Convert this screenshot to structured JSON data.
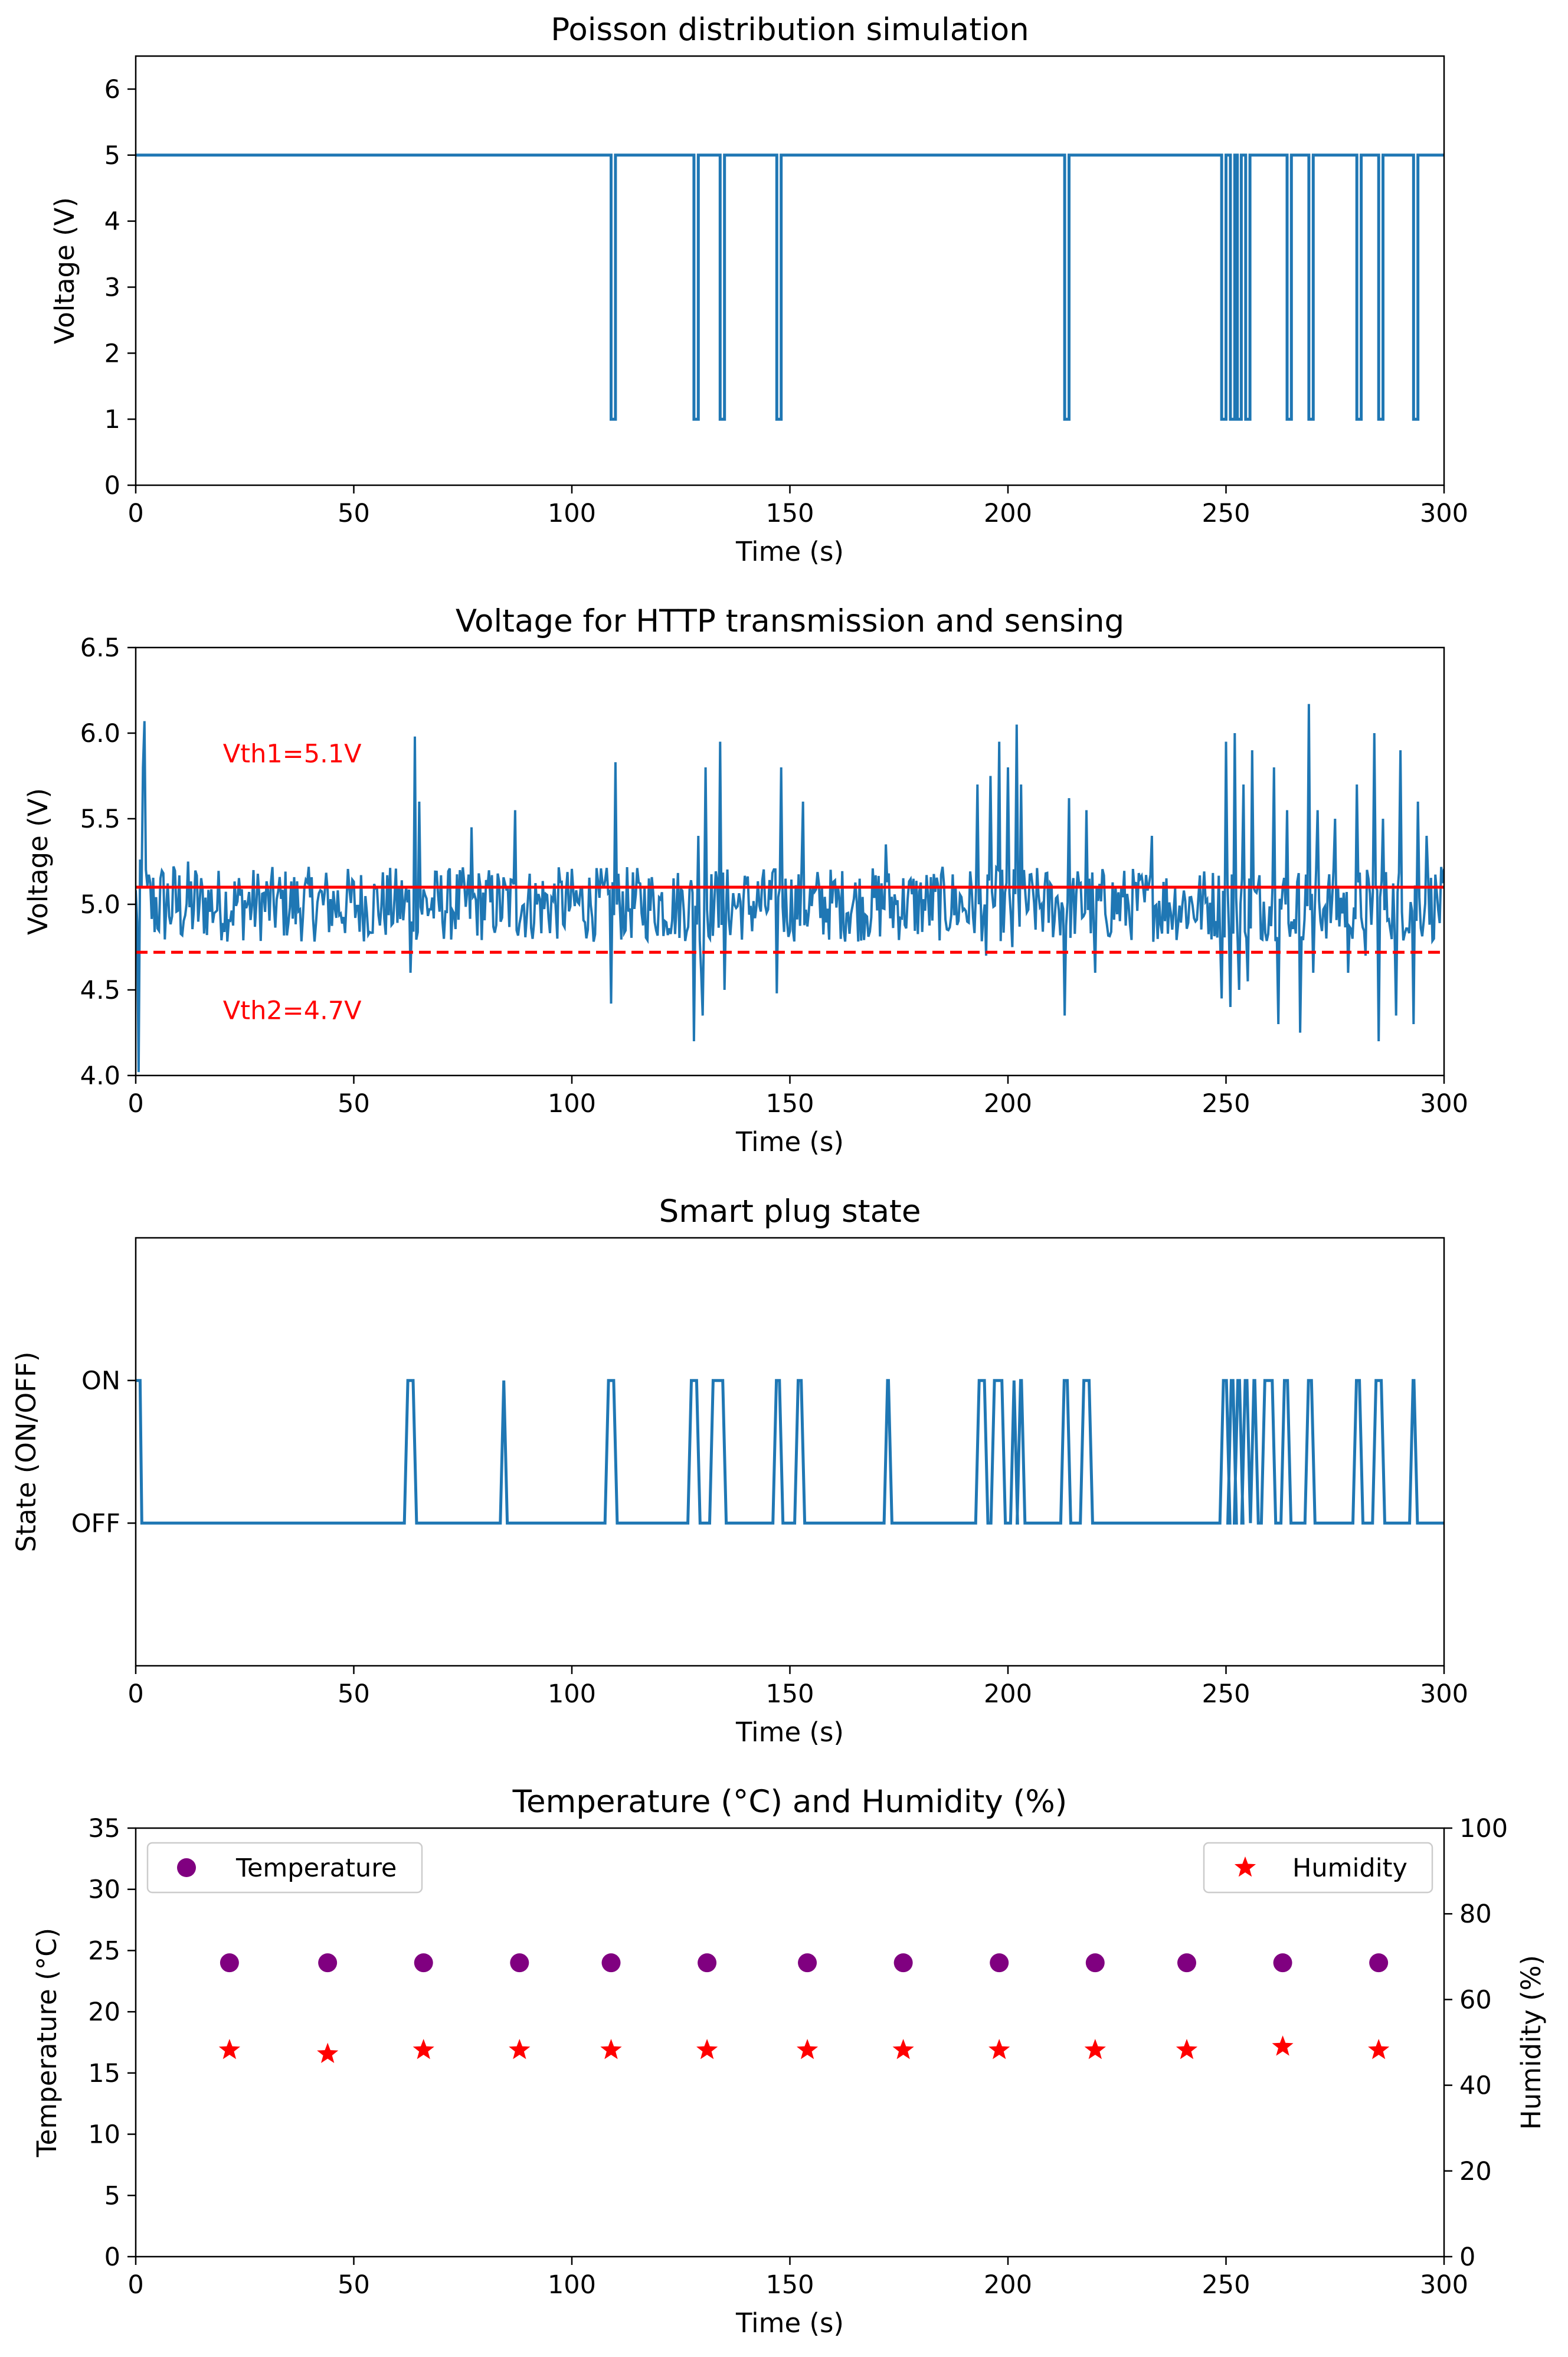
{
  "figure": {
    "xlabel": "Time (s)"
  },
  "chart_data": [
    {
      "type": "line",
      "title": "Poisson distribution simulation",
      "xlabel": "Time (s)",
      "ylabel": "Voltage (V)",
      "xlim": [
        0,
        300
      ],
      "ylim": [
        0,
        6.5
      ],
      "xticks": [
        "0",
        "50",
        "100",
        "150",
        "200",
        "250",
        "300"
      ],
      "yticks": [
        "0",
        "1",
        "2",
        "3",
        "4",
        "5",
        "6"
      ],
      "grid": false,
      "series": [
        {
          "name": "Voltage",
          "color": "#1f77b4",
          "high": 5,
          "low": 1,
          "pulses": [
            [
              109,
              110
            ],
            [
              128,
              129
            ],
            [
              134,
              135
            ],
            [
              147,
              148
            ],
            [
              213,
              214
            ],
            [
              249,
              250
            ],
            [
              251,
              252
            ],
            [
              252.6,
              253.5
            ],
            [
              254.5,
              255.5
            ],
            [
              264,
              265
            ],
            [
              269,
              270
            ],
            [
              280,
              281
            ],
            [
              285,
              286
            ],
            [
              293,
              294
            ]
          ]
        }
      ]
    },
    {
      "type": "line",
      "title": "Voltage for HTTP transmission and sensing",
      "xlabel": "Time (s)",
      "ylabel": "Voltage (V)",
      "xlim": [
        0,
        300
      ],
      "ylim": [
        4.0,
        6.5
      ],
      "xticks": [
        "0",
        "50",
        "100",
        "150",
        "200",
        "250",
        "300"
      ],
      "yticks": [
        "4.0",
        "4.5",
        "5.0",
        "5.5",
        "6.0",
        "6.5"
      ],
      "grid": false,
      "series": [
        {
          "name": "Voltage",
          "color": "#1f77b4",
          "mean": 5.0,
          "noise": 0.22,
          "samples": 900
        }
      ],
      "spikes": [
        [
          0.5,
          4.02
        ],
        [
          1.5,
          5.8
        ],
        [
          2,
          6.07
        ],
        [
          63,
          4.6
        ],
        [
          64,
          5.98
        ],
        [
          65,
          5.6
        ],
        [
          77,
          5.45
        ],
        [
          87,
          5.55
        ],
        [
          109,
          4.42
        ],
        [
          110,
          5.83
        ],
        [
          128,
          4.2
        ],
        [
          129,
          5.4
        ],
        [
          129.5,
          4.6
        ],
        [
          130,
          4.35
        ],
        [
          130.5,
          5.8
        ],
        [
          134,
          5.95
        ],
        [
          135,
          4.5
        ],
        [
          147,
          4.48
        ],
        [
          148,
          5.8
        ],
        [
          153,
          5.6
        ],
        [
          172,
          5.35
        ],
        [
          193,
          5.7
        ],
        [
          195,
          4.7
        ],
        [
          196,
          5.75
        ],
        [
          198,
          5.95
        ],
        [
          200,
          5.8
        ],
        [
          201,
          4.75
        ],
        [
          202,
          6.05
        ],
        [
          203,
          5.7
        ],
        [
          213,
          4.35
        ],
        [
          214,
          5.62
        ],
        [
          218,
          5.55
        ],
        [
          220,
          4.6
        ],
        [
          233,
          5.4
        ],
        [
          249,
          4.45
        ],
        [
          250,
          5.95
        ],
        [
          251,
          4.4
        ],
        [
          252,
          6.0
        ],
        [
          253,
          4.5
        ],
        [
          254,
          5.7
        ],
        [
          255,
          4.55
        ],
        [
          256,
          5.9
        ],
        [
          258,
          4.8
        ],
        [
          261,
          5.8
        ],
        [
          262,
          4.3
        ],
        [
          264,
          5.55
        ],
        [
          265,
          4.9
        ],
        [
          267,
          4.25
        ],
        [
          269,
          6.17
        ],
        [
          270,
          4.6
        ],
        [
          271,
          5.55
        ],
        [
          275,
          5.5
        ],
        [
          278,
          4.6
        ],
        [
          280,
          5.7
        ],
        [
          282,
          4.7
        ],
        [
          284,
          6.0
        ],
        [
          285,
          4.2
        ],
        [
          286,
          5.5
        ],
        [
          289,
          4.35
        ],
        [
          290,
          5.9
        ],
        [
          293,
          4.3
        ],
        [
          294,
          5.6
        ],
        [
          296,
          5.4
        ]
      ],
      "thresholds": [
        {
          "label": "Vth1=5.1V",
          "value": 5.1,
          "style": "solid",
          "color": "#ff0000"
        },
        {
          "label": "Vth2=4.7V",
          "value": 4.72,
          "style": "dashed",
          "color": "#ff0000"
        }
      ]
    },
    {
      "type": "line",
      "title": "Smart plug state",
      "xlabel": "Time (s)",
      "ylabel": "State (ON/OFF)",
      "xlim": [
        0,
        300
      ],
      "ylim": [
        -1,
        2
      ],
      "xticks": [
        "0",
        "50",
        "100",
        "150",
        "200",
        "250",
        "300"
      ],
      "yticks": [
        "OFF",
        "ON"
      ],
      "ytick_values": [
        0,
        1
      ],
      "grid": false,
      "series": [
        {
          "name": "State",
          "color": "#1f77b4",
          "on_intervals": [
            [
              0,
              1
            ],
            [
              62,
              64
            ],
            [
              84,
              84.8
            ],
            [
              108,
              110
            ],
            [
              127,
              129
            ],
            [
              132,
              135
            ],
            [
              146.5,
              148
            ],
            [
              151.5,
              153
            ],
            [
              172,
              173
            ],
            [
              193,
              195
            ],
            [
              196.5,
              199
            ],
            [
              201,
              201.8
            ],
            [
              202.5,
              203.5
            ],
            [
              212.5,
              214
            ],
            [
              217,
              219
            ],
            [
              249,
              250.5
            ],
            [
              250.8,
              252
            ],
            [
              252.3,
              253.5
            ],
            [
              254,
              255.2
            ],
            [
              256,
              257
            ],
            [
              258.5,
              261
            ],
            [
              263,
              264.5
            ],
            [
              268.5,
              270
            ],
            [
              279.5,
              281
            ],
            [
              284,
              286
            ],
            [
              292.5,
              293.5
            ]
          ]
        }
      ]
    },
    {
      "type": "scatter",
      "title": "Temperature (°C) and Humidity (%)",
      "xlabel": "Time (s)",
      "ylabel": "Temperature (°C)",
      "ylabel_right": "Humidity (%)",
      "xlim": [
        0,
        300
      ],
      "ylim": [
        0,
        35
      ],
      "ylim_right": [
        0,
        100
      ],
      "xticks": [
        "0",
        "50",
        "100",
        "150",
        "200",
        "250",
        "300"
      ],
      "yticks": [
        "0",
        "5",
        "10",
        "15",
        "20",
        "25",
        "30",
        "35"
      ],
      "yticks_right": [
        "0",
        "20",
        "40",
        "60",
        "80",
        "100"
      ],
      "grid": false,
      "x": [
        21.5,
        44,
        66,
        88,
        109,
        131,
        154,
        176,
        198,
        220,
        241,
        263,
        285
      ],
      "series": [
        {
          "name": "Temperature",
          "axis": "left",
          "marker": "circle",
          "color": "#800080",
          "values": [
            24,
            24,
            24,
            24,
            24,
            24,
            24,
            24,
            24,
            24,
            24,
            24,
            24
          ]
        },
        {
          "name": "Humidity",
          "axis": "right",
          "marker": "star",
          "color": "#ff0000",
          "values": [
            48.2,
            47.3,
            48.2,
            48.2,
            48.2,
            48.2,
            48.2,
            48.2,
            48.2,
            48.2,
            48.2,
            49.0,
            48.2
          ]
        }
      ],
      "legend": [
        {
          "label": "Temperature",
          "location": "upper-left"
        },
        {
          "label": "Humidity",
          "location": "upper-right"
        }
      ]
    }
  ]
}
